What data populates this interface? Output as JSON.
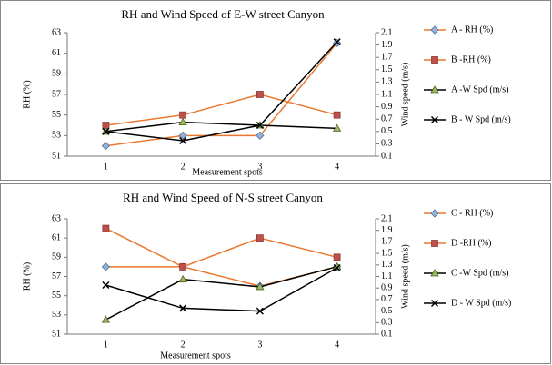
{
  "chart_data": [
    {
      "type": "line",
      "title": "RH and Wind Speed of E-W street Canyon",
      "x_label": "Measurement spots",
      "y_label": "RH (%)",
      "y2_label": "Wind speed (m/s)",
      "categories": [
        "1",
        "2",
        "3",
        "4"
      ],
      "ylim": [
        51,
        63
      ],
      "yticks": [
        51,
        53,
        55,
        57,
        59,
        61,
        63
      ],
      "y2lim": [
        0.1,
        2.1
      ],
      "y2ticks": [
        0.1,
        0.3,
        0.5,
        0.7,
        0.9,
        1.1,
        1.3,
        1.5,
        1.7,
        1.9,
        2.1
      ],
      "series": [
        {
          "name": "A - RH (%)",
          "color": "#e8782e",
          "marker": "diamond",
          "marker_color": "#95b3d7",
          "values": [
            52,
            53,
            53,
            62
          ]
        },
        {
          "name": "B -RH (%)",
          "color": "#e8782e",
          "marker": "square",
          "marker_color": "#c0504d",
          "values": [
            54,
            55,
            57,
            55
          ]
        },
        {
          "name": "A -W Spd  (m/s)",
          "color": "#000000",
          "marker": "triangle",
          "marker_color": "#9bbb59",
          "axis": "y2",
          "values": [
            0.5,
            0.65,
            0.6,
            0.55
          ]
        },
        {
          "name": "B - W Spd (m/s)",
          "color": "#000000",
          "marker": "x",
          "marker_color": "#000000",
          "axis": "y2",
          "values": [
            0.5,
            0.35,
            0.6,
            1.95
          ]
        }
      ]
    },
    {
      "type": "line",
      "title": "RH and Wind Speed of N-S street Canyon",
      "x_label": "Measurement spots",
      "y_label": "RH (%)",
      "y2_label": "Wind speed (m/s)",
      "categories": [
        "1",
        "2",
        "3",
        "4"
      ],
      "ylim": [
        51,
        63
      ],
      "yticks": [
        51,
        53,
        55,
        57,
        59,
        61,
        63
      ],
      "y2lim": [
        0.1,
        2.1
      ],
      "y2ticks": [
        0.1,
        0.3,
        0.5,
        0.7,
        0.9,
        1.1,
        1.3,
        1.5,
        1.7,
        1.9,
        2.1
      ],
      "series": [
        {
          "name": "C - RH (%)",
          "color": "#e8782e",
          "marker": "diamond",
          "marker_color": "#95b3d7",
          "values": [
            58,
            58,
            56,
            58
          ]
        },
        {
          "name": "D -RH (%)",
          "color": "#e8782e",
          "marker": "square",
          "marker_color": "#c0504d",
          "values": [
            62,
            58,
            61,
            59
          ]
        },
        {
          "name": "C -W Spd  (m/s)",
          "color": "#000000",
          "marker": "triangle",
          "marker_color": "#9bbb59",
          "axis": "y2",
          "values": [
            0.35,
            1.05,
            0.92,
            1.27
          ]
        },
        {
          "name": "D - W Spd (m/s)",
          "color": "#000000",
          "marker": "x",
          "marker_color": "#000000",
          "axis": "y2",
          "values": [
            0.95,
            0.55,
            0.5,
            1.25
          ]
        }
      ]
    }
  ]
}
